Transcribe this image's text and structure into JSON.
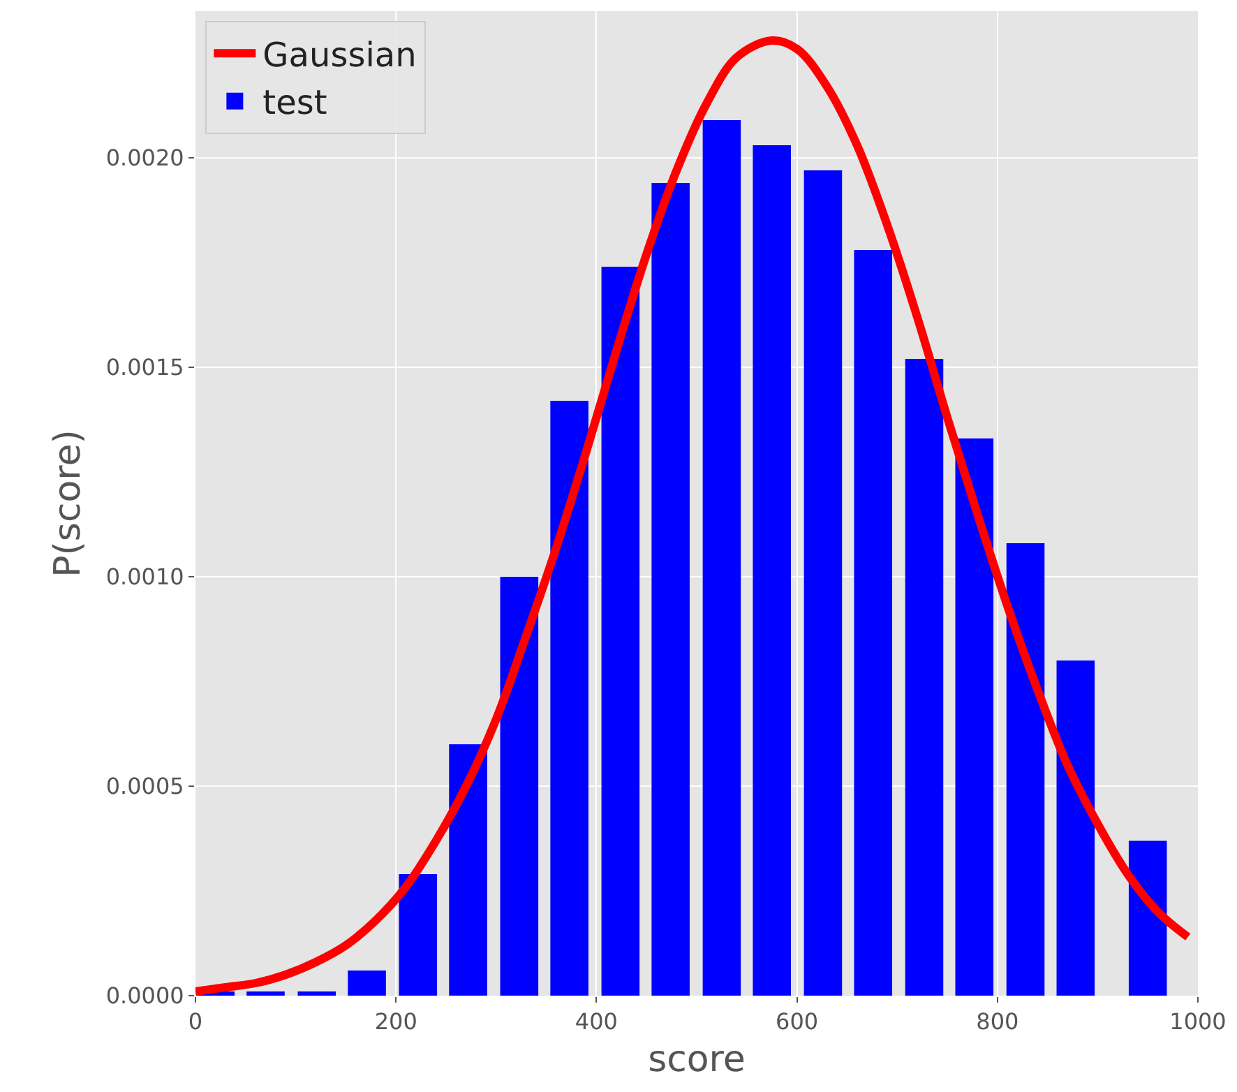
{
  "chart_data": {
    "type": "bar",
    "xlabel": "score",
    "ylabel": "P(score)",
    "xlim": [
      0,
      1000
    ],
    "ylim": [
      0,
      0.00235
    ],
    "xticks": [
      0,
      200,
      400,
      600,
      800,
      1000
    ],
    "yticks": [
      {
        "value": 0,
        "label": "0.0000"
      },
      {
        "value": 0.0005,
        "label": "0.0005"
      },
      {
        "value": 0.001,
        "label": "0.0010"
      },
      {
        "value": 0.0015,
        "label": "0.0015"
      },
      {
        "value": 0.002,
        "label": "0.0020"
      }
    ],
    "grid": true,
    "legend": "top left",
    "series": [
      {
        "name": "Gaussian",
        "type": "line",
        "color": "#ff0000",
        "x": [
          0,
          30,
          60,
          90,
          120,
          150,
          180,
          210,
          240,
          270,
          300,
          330,
          360,
          390,
          420,
          450,
          480,
          510,
          540,
          575,
          600,
          630,
          660,
          690,
          720,
          750,
          780,
          810,
          840,
          870,
          900,
          930,
          960,
          990
        ],
        "values": [
          1e-05,
          2e-05,
          3e-05,
          5e-05,
          8e-05,
          0.00012,
          0.00018,
          0.00026,
          0.00037,
          0.0005,
          0.00066,
          0.00086,
          0.00107,
          0.0013,
          0.00154,
          0.00177,
          0.00197,
          0.00213,
          0.00224,
          0.00228,
          0.00226,
          0.00217,
          0.00203,
          0.00184,
          0.00162,
          0.00138,
          0.00115,
          0.00093,
          0.00073,
          0.00055,
          0.00041,
          0.00029,
          0.0002,
          0.00014
        ]
      },
      {
        "name": "test",
        "color": "#0000ff",
        "x": [
          20,
          70,
          121,
          171,
          222,
          272,
          323,
          373,
          424,
          474,
          525,
          575,
          626,
          676,
          727,
          777,
          828,
          878,
          950
        ],
        "values": [
          1e-05,
          1e-05,
          1e-05,
          6e-05,
          0.00029,
          0.0006,
          0.001,
          0.00142,
          0.00174,
          0.00194,
          0.00209,
          0.00203,
          0.00197,
          0.00178,
          0.00152,
          0.00133,
          0.00108,
          0.0008,
          0.00037
        ]
      }
    ]
  }
}
